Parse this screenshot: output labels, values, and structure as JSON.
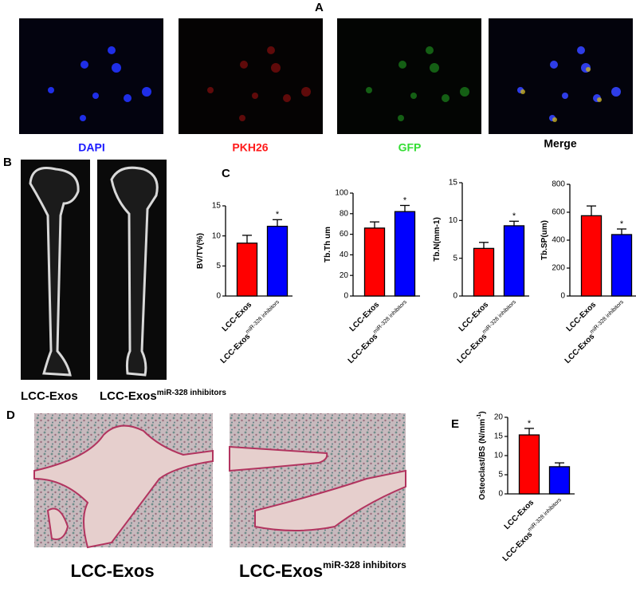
{
  "panel_labels": [
    "A",
    "B",
    "C",
    "D",
    "E"
  ],
  "fluorescence_captions": [
    {
      "text": "DAPI",
      "color": "#1a1aff"
    },
    {
      "text": "PKH26",
      "color": "#ff1a1a"
    },
    {
      "text": "GFP",
      "color": "#33dd33"
    },
    {
      "text": "Merge",
      "color": "#000000"
    }
  ],
  "ct_captions": {
    "left": "LCC-Exos",
    "right": "LCC-Exos",
    "right_sup": "miR-328 inhibitors"
  },
  "histology_captions": {
    "left": "LCC-Exos",
    "right": "LCC-Exos",
    "right_sup": "miR-328 inhibitors"
  },
  "chart_data": [
    {
      "type": "bar",
      "ylabel": "BV/TV(%)",
      "categories": [
        "LCC-Exos",
        "LCC-Exos"
      ],
      "category_sup": [
        null,
        "miR-328 inhibitors"
      ],
      "values": [
        8.8,
        11.6
      ],
      "errors": [
        1.3,
        1.1
      ],
      "annotations": [
        null,
        "*"
      ],
      "colors": [
        "#ff0000",
        "#0000ff"
      ],
      "ylim": [
        0,
        15
      ],
      "yticks": [
        0,
        5,
        10,
        15
      ]
    },
    {
      "type": "bar",
      "ylabel": "Tb.Th um",
      "categories": [
        "LCC-Exos",
        "LCC-Exos"
      ],
      "category_sup": [
        null,
        "miR-328 inhibitors"
      ],
      "values": [
        66,
        82
      ],
      "errors": [
        6,
        6
      ],
      "annotations": [
        null,
        "*"
      ],
      "colors": [
        "#ff0000",
        "#0000ff"
      ],
      "ylim": [
        0,
        100
      ],
      "yticks": [
        0,
        20,
        40,
        60,
        80,
        100
      ]
    },
    {
      "type": "bar",
      "ylabel": "Tb.N(mm-1)",
      "categories": [
        "LCC-Exos",
        "LCC-Exos"
      ],
      "category_sup": [
        null,
        "miR-328 inhibitors"
      ],
      "values": [
        6.3,
        9.3
      ],
      "errors": [
        0.8,
        0.6
      ],
      "annotations": [
        null,
        "*"
      ],
      "colors": [
        "#ff0000",
        "#0000ff"
      ],
      "ylim": [
        0,
        15
      ],
      "yticks": [
        0,
        5,
        10,
        15
      ]
    },
    {
      "type": "bar",
      "ylabel": "Tb.SP(um)",
      "categories": [
        "LCC-Exos",
        "LCC-Exos"
      ],
      "category_sup": [
        null,
        "miR-328 inhibitors"
      ],
      "values": [
        575,
        440
      ],
      "errors": [
        70,
        40
      ],
      "annotations": [
        null,
        "*"
      ],
      "colors": [
        "#ff0000",
        "#0000ff"
      ],
      "ylim": [
        0,
        800
      ],
      "yticks": [
        0,
        200,
        400,
        600,
        800
      ]
    },
    {
      "type": "bar",
      "ylabel": "Osteoclast/BS (N/mm",
      "ylabel_sup": "-1",
      "ylabel_end": ")",
      "categories": [
        "LCC-Exos",
        "LCC-Exos"
      ],
      "category_sup": [
        null,
        "miR-328 inhibitors"
      ],
      "values": [
        15.4,
        7.1
      ],
      "errors": [
        1.7,
        1.0
      ],
      "annotations": [
        "*",
        null
      ],
      "colors": [
        "#ff0000",
        "#0000ff"
      ],
      "ylim": [
        0,
        20
      ],
      "yticks": [
        0,
        5,
        10,
        15,
        20
      ]
    }
  ]
}
